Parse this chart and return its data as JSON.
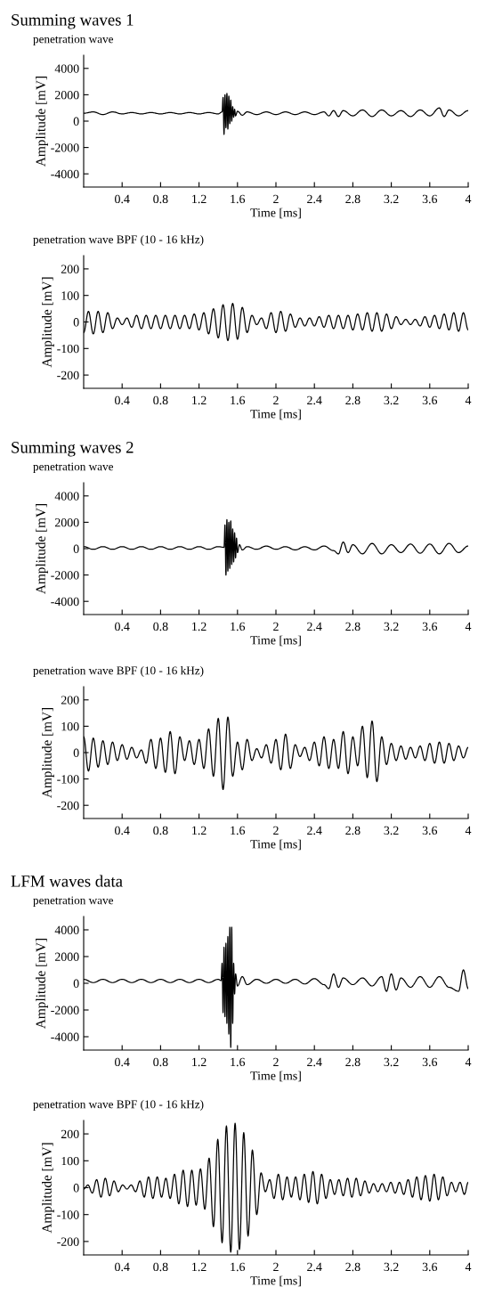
{
  "chart_data": [
    {
      "type": "line",
      "title": "Summing waves 1",
      "subtitle": "penetration wave",
      "xlabel": "Time [ms]",
      "ylabel": "Amplitude [mV]",
      "xlim": [
        0,
        4
      ],
      "xticks": [
        0.4,
        0.8,
        1.2,
        1.6,
        2,
        2.4,
        2.8,
        3.2,
        3.6,
        4
      ],
      "ylim": [
        -5000,
        5000
      ],
      "yticks": [
        -4000,
        -2000,
        0,
        2000,
        4000
      ],
      "x": [
        0,
        0.1,
        0.2,
        0.3,
        0.4,
        0.5,
        0.6,
        0.7,
        0.8,
        0.9,
        1.0,
        1.1,
        1.2,
        1.3,
        1.4,
        1.44,
        1.45,
        1.46,
        1.47,
        1.48,
        1.49,
        1.5,
        1.51,
        1.52,
        1.53,
        1.54,
        1.55,
        1.56,
        1.57,
        1.58,
        1.6,
        1.65,
        1.7,
        1.8,
        1.9,
        2.0,
        2.1,
        2.2,
        2.3,
        2.4,
        2.5,
        2.55,
        2.6,
        2.65,
        2.7,
        2.8,
        2.9,
        3.0,
        3.1,
        3.2,
        3.3,
        3.4,
        3.5,
        3.6,
        3.7,
        3.75,
        3.8,
        3.9,
        4.0
      ],
      "series": [
        {
          "color": "#000000",
          "values": [
            600,
            700,
            500,
            700,
            550,
            650,
            550,
            650,
            550,
            650,
            550,
            650,
            550,
            650,
            550,
            700,
            1800,
            -1000,
            2000,
            -500,
            2100,
            -600,
            1900,
            -200,
            1600,
            0,
            1100,
            300,
            900,
            400,
            750,
            450,
            700,
            500,
            700,
            500,
            700,
            500,
            700,
            500,
            700,
            400,
            800,
            350,
            800,
            400,
            850,
            350,
            850,
            400,
            800,
            350,
            850,
            400,
            1000,
            350,
            850,
            400,
            800
          ]
        }
      ]
    },
    {
      "type": "line",
      "subtitle": "penetration wave BPF (10 - 16 kHz)",
      "xlabel": "Time [ms]",
      "ylabel": "Amplitude [mV]",
      "xlim": [
        0,
        4
      ],
      "xticks": [
        0.4,
        0.8,
        1.2,
        1.6,
        2,
        2.4,
        2.8,
        3.2,
        3.6,
        4
      ],
      "ylim": [
        -250,
        250
      ],
      "yticks": [
        -200,
        -100,
        0,
        100,
        200
      ],
      "x": [
        0,
        0.05,
        0.1,
        0.15,
        0.2,
        0.25,
        0.3,
        0.35,
        0.4,
        0.45,
        0.5,
        0.55,
        0.6,
        0.65,
        0.7,
        0.75,
        0.8,
        0.85,
        0.9,
        0.95,
        1.0,
        1.05,
        1.1,
        1.15,
        1.2,
        1.25,
        1.3,
        1.35,
        1.4,
        1.45,
        1.5,
        1.55,
        1.6,
        1.65,
        1.7,
        1.75,
        1.8,
        1.85,
        1.9,
        1.95,
        2.0,
        2.05,
        2.1,
        2.15,
        2.2,
        2.25,
        2.3,
        2.35,
        2.4,
        2.45,
        2.5,
        2.55,
        2.6,
        2.65,
        2.7,
        2.75,
        2.8,
        2.85,
        2.9,
        2.95,
        3.0,
        3.05,
        3.1,
        3.15,
        3.2,
        3.25,
        3.3,
        3.35,
        3.4,
        3.45,
        3.5,
        3.55,
        3.6,
        3.65,
        3.7,
        3.75,
        3.8,
        3.85,
        3.9,
        3.95,
        4.0
      ],
      "series": [
        {
          "color": "#000000",
          "values": [
            -40,
            40,
            -45,
            40,
            -40,
            35,
            -25,
            15,
            -10,
            15,
            -20,
            25,
            -25,
            25,
            -25,
            25,
            -25,
            25,
            -25,
            25,
            -25,
            25,
            -25,
            30,
            -30,
            35,
            -45,
            50,
            -60,
            65,
            -70,
            70,
            -65,
            55,
            -40,
            25,
            -10,
            15,
            -25,
            35,
            -40,
            40,
            -35,
            30,
            -20,
            15,
            -15,
            15,
            -15,
            20,
            -20,
            25,
            -25,
            25,
            -25,
            25,
            -30,
            30,
            -30,
            35,
            -35,
            35,
            -35,
            30,
            -25,
            20,
            -10,
            10,
            -10,
            10,
            -15,
            20,
            -20,
            25,
            -25,
            30,
            -30,
            35,
            -35,
            35,
            -30
          ]
        }
      ]
    },
    {
      "type": "line",
      "title": "Summing waves 2",
      "subtitle": "penetration wave",
      "xlabel": "Time [ms]",
      "ylabel": "Amplitude [mV]",
      "xlim": [
        0,
        4
      ],
      "xticks": [
        0.4,
        0.8,
        1.2,
        1.6,
        2,
        2.4,
        2.8,
        3.2,
        3.6,
        4
      ],
      "ylim": [
        -5000,
        5000
      ],
      "yticks": [
        -4000,
        -2000,
        0,
        2000,
        4000
      ],
      "x": [
        0,
        0.1,
        0.2,
        0.3,
        0.4,
        0.5,
        0.6,
        0.7,
        0.8,
        0.9,
        1.0,
        1.1,
        1.2,
        1.3,
        1.4,
        1.46,
        1.47,
        1.48,
        1.49,
        1.5,
        1.51,
        1.52,
        1.53,
        1.54,
        1.55,
        1.56,
        1.57,
        1.58,
        1.59,
        1.6,
        1.62,
        1.65,
        1.7,
        1.8,
        1.9,
        2.0,
        2.1,
        2.2,
        2.3,
        2.4,
        2.5,
        2.6,
        2.65,
        2.7,
        2.75,
        2.8,
        2.9,
        3.0,
        3.1,
        3.2,
        3.3,
        3.4,
        3.5,
        3.6,
        3.7,
        3.8,
        3.9,
        4.0
      ],
      "series": [
        {
          "color": "#000000",
          "values": [
            150,
            -50,
            150,
            -50,
            150,
            -50,
            150,
            -50,
            150,
            -50,
            150,
            -50,
            150,
            -50,
            150,
            100,
            1800,
            -2000,
            2200,
            -1700,
            2000,
            -1500,
            2100,
            -1200,
            1500,
            -1000,
            1200,
            -700,
            800,
            -300,
            300,
            -100,
            150,
            -50,
            200,
            -50,
            150,
            -100,
            150,
            -100,
            200,
            -150,
            -400,
            500,
            -300,
            300,
            -400,
            400,
            -400,
            300,
            -300,
            350,
            -350,
            350,
            -400,
            400,
            -300,
            200
          ]
        }
      ]
    },
    {
      "type": "line",
      "subtitle": "penetration wave BPF (10 - 16 kHz)",
      "xlabel": "Time [ms]",
      "ylabel": "Amplitude [mV]",
      "xlim": [
        0,
        4
      ],
      "xticks": [
        0.4,
        0.8,
        1.2,
        1.6,
        2,
        2.4,
        2.8,
        3.2,
        3.6,
        4
      ],
      "ylim": [
        -250,
        250
      ],
      "yticks": [
        -200,
        -100,
        0,
        100,
        200
      ],
      "x": [
        0,
        0.05,
        0.1,
        0.15,
        0.2,
        0.25,
        0.3,
        0.35,
        0.4,
        0.45,
        0.5,
        0.55,
        0.6,
        0.65,
        0.7,
        0.75,
        0.8,
        0.85,
        0.9,
        0.95,
        1.0,
        1.05,
        1.1,
        1.15,
        1.2,
        1.25,
        1.3,
        1.35,
        1.4,
        1.45,
        1.5,
        1.55,
        1.6,
        1.65,
        1.7,
        1.75,
        1.8,
        1.85,
        1.9,
        1.95,
        2.0,
        2.05,
        2.1,
        2.15,
        2.2,
        2.25,
        2.3,
        2.35,
        2.4,
        2.45,
        2.5,
        2.55,
        2.6,
        2.65,
        2.7,
        2.75,
        2.8,
        2.85,
        2.9,
        2.95,
        3.0,
        3.05,
        3.1,
        3.15,
        3.2,
        3.25,
        3.3,
        3.35,
        3.4,
        3.45,
        3.5,
        3.55,
        3.6,
        3.65,
        3.7,
        3.75,
        3.8,
        3.85,
        3.9,
        3.95,
        4.0
      ],
      "series": [
        {
          "color": "#000000",
          "values": [
            60,
            -70,
            55,
            -55,
            45,
            -45,
            40,
            -30,
            30,
            -25,
            20,
            -20,
            10,
            -40,
            50,
            -60,
            55,
            -75,
            80,
            -80,
            60,
            -30,
            45,
            -45,
            50,
            -60,
            90,
            -90,
            130,
            -140,
            135,
            -90,
            40,
            -65,
            50,
            -30,
            15,
            -20,
            30,
            -40,
            50,
            -65,
            70,
            -60,
            30,
            -15,
            20,
            -30,
            40,
            -50,
            60,
            -60,
            50,
            -60,
            80,
            -80,
            60,
            -50,
            100,
            -95,
            120,
            -110,
            60,
            -45,
            35,
            -30,
            25,
            -25,
            20,
            -20,
            25,
            -30,
            35,
            -40,
            40,
            -40,
            35,
            -30,
            25,
            -20,
            20
          ]
        }
      ]
    },
    {
      "type": "line",
      "title": "LFM waves data",
      "subtitle": "penetration wave",
      "xlabel": "Time [ms]",
      "ylabel": "Amplitude [mV]",
      "xlim": [
        0,
        4
      ],
      "xticks": [
        0.4,
        0.8,
        1.2,
        1.6,
        2,
        2.4,
        2.8,
        3.2,
        3.6,
        4
      ],
      "ylim": [
        -5000,
        5000
      ],
      "yticks": [
        -4000,
        -2000,
        0,
        2000,
        4000
      ],
      "x": [
        0,
        0.1,
        0.2,
        0.3,
        0.4,
        0.5,
        0.6,
        0.7,
        0.8,
        0.9,
        1.0,
        1.1,
        1.2,
        1.3,
        1.4,
        1.43,
        1.44,
        1.45,
        1.46,
        1.47,
        1.48,
        1.49,
        1.5,
        1.51,
        1.52,
        1.53,
        1.54,
        1.55,
        1.56,
        1.57,
        1.58,
        1.6,
        1.65,
        1.7,
        1.8,
        1.9,
        2.0,
        2.1,
        2.2,
        2.3,
        2.4,
        2.5,
        2.55,
        2.6,
        2.65,
        2.7,
        2.8,
        2.9,
        3.0,
        3.1,
        3.15,
        3.2,
        3.25,
        3.3,
        3.4,
        3.5,
        3.6,
        3.7,
        3.8,
        3.9,
        3.95,
        4.0
      ],
      "series": [
        {
          "color": "#000000",
          "values": [
            300,
            50,
            300,
            50,
            300,
            50,
            300,
            50,
            300,
            50,
            300,
            50,
            300,
            50,
            300,
            200,
            1500,
            -2200,
            2700,
            -2500,
            3000,
            -3000,
            3500,
            -3800,
            4200,
            -4800,
            4200,
            -3000,
            1500,
            -800,
            700,
            -200,
            500,
            -100,
            300,
            0,
            300,
            0,
            300,
            -50,
            350,
            -100,
            -400,
            700,
            -300,
            400,
            -100,
            400,
            -200,
            500,
            -600,
            700,
            -500,
            400,
            -300,
            500,
            -300,
            500,
            -300,
            -600,
            1000,
            -400
          ]
        }
      ]
    },
    {
      "type": "line",
      "subtitle": "penetration wave BPF (10 - 16 kHz)",
      "xlabel": "Time [ms]",
      "ylabel": "Amplitude [mV]",
      "xlim": [
        0,
        4
      ],
      "xticks": [
        0.4,
        0.8,
        1.2,
        1.6,
        2,
        2.4,
        2.8,
        3.2,
        3.6,
        4
      ],
      "ylim": [
        -250,
        250
      ],
      "yticks": [
        -200,
        -100,
        0,
        100,
        200
      ],
      "x": [
        0,
        0.045,
        0.09,
        0.135,
        0.18,
        0.225,
        0.27,
        0.315,
        0.36,
        0.405,
        0.45,
        0.495,
        0.54,
        0.585,
        0.63,
        0.675,
        0.72,
        0.765,
        0.81,
        0.855,
        0.9,
        0.945,
        0.99,
        1.035,
        1.08,
        1.125,
        1.17,
        1.215,
        1.26,
        1.305,
        1.35,
        1.395,
        1.44,
        1.485,
        1.53,
        1.575,
        1.62,
        1.665,
        1.71,
        1.755,
        1.8,
        1.845,
        1.89,
        1.935,
        1.98,
        2.025,
        2.07,
        2.115,
        2.16,
        2.205,
        2.25,
        2.295,
        2.34,
        2.385,
        2.43,
        2.475,
        2.52,
        2.565,
        2.61,
        2.655,
        2.7,
        2.745,
        2.79,
        2.835,
        2.88,
        2.925,
        2.97,
        3.015,
        3.06,
        3.105,
        3.15,
        3.195,
        3.24,
        3.285,
        3.33,
        3.375,
        3.42,
        3.465,
        3.51,
        3.555,
        3.6,
        3.645,
        3.69,
        3.735,
        3.78,
        3.825,
        3.87,
        3.915,
        3.96,
        4
      ],
      "series": [
        {
          "color": "#000000",
          "values": [
            -5,
            10,
            -20,
            30,
            -35,
            35,
            -30,
            25,
            -15,
            10,
            -5,
            10,
            -15,
            25,
            -35,
            40,
            -40,
            40,
            -35,
            35,
            -40,
            50,
            -60,
            65,
            -70,
            65,
            -65,
            70,
            -80,
            110,
            -145,
            180,
            -205,
            230,
            -240,
            240,
            -230,
            205,
            -180,
            140,
            -100,
            55,
            -15,
            30,
            -40,
            50,
            -45,
            40,
            -35,
            40,
            -45,
            50,
            -55,
            60,
            -60,
            50,
            -40,
            30,
            -25,
            30,
            -30,
            35,
            -35,
            35,
            -30,
            25,
            -20,
            15,
            -15,
            15,
            -15,
            20,
            -20,
            20,
            -25,
            30,
            -35,
            40,
            -45,
            45,
            -50,
            50,
            -45,
            40,
            -30,
            20,
            -15,
            20,
            -25,
            20
          ]
        }
      ]
    }
  ]
}
